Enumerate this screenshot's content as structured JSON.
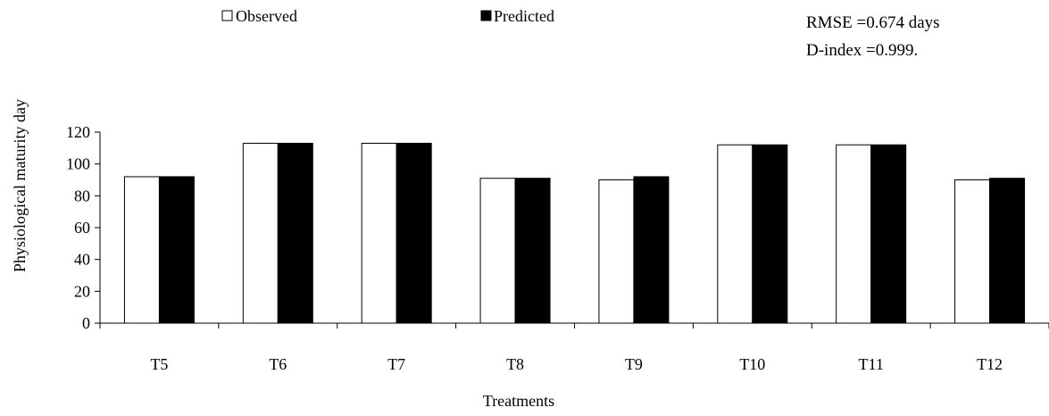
{
  "chart_data": {
    "type": "bar",
    "categories": [
      "T5",
      "T6",
      "T7",
      "T8",
      "T9",
      "T10",
      "T11",
      "T12"
    ],
    "series": [
      {
        "name": "Observed",
        "values": [
          92,
          113,
          113,
          91,
          90,
          112,
          112,
          90
        ],
        "color": "#ffffff"
      },
      {
        "name": "Predicted",
        "values": [
          92,
          113,
          113,
          91,
          92,
          112,
          112,
          91
        ],
        "color": "#000000"
      }
    ],
    "title": "",
    "xlabel": "Treatments",
    "ylabel": "Physiological maturity day",
    "ylim": [
      0,
      120
    ],
    "yticks": [
      "0",
      "20",
      "40",
      "60",
      "80",
      "100",
      "120"
    ],
    "grid": false,
    "legend_position": "top",
    "annotations": [
      "RMSE =0.674 days",
      "D-index =0.999."
    ]
  }
}
